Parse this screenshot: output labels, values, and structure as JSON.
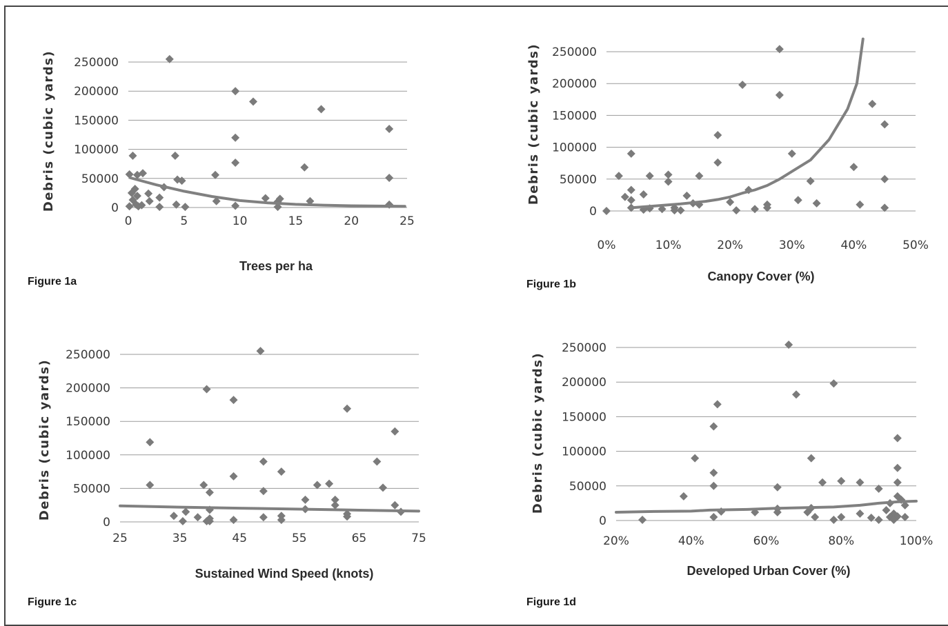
{
  "captions": {
    "a": "Figure 1a",
    "b": "Figure 1b",
    "c": "Figure 1c",
    "d": "Figure 1d"
  },
  "colors": {
    "marker": "#7b7b7b",
    "trend": "#808080",
    "grid": "#9a9a9a",
    "frame": "#444444"
  },
  "chart_data": [
    {
      "id": "a",
      "type": "scatter",
      "title": "",
      "xlabel": "Trees per ha",
      "ylabel": "Debris (cubic yards)",
      "xlim": [
        0,
        25
      ],
      "ylim": [
        0,
        250000
      ],
      "x_ticks": [
        0,
        5,
        10,
        15,
        20,
        25
      ],
      "x_tick_labels": [
        "0",
        "5",
        "10",
        "15",
        "20",
        "25"
      ],
      "y_ticks": [
        0,
        50000,
        100000,
        150000,
        200000,
        250000
      ],
      "y_tick_labels": [
        "0",
        "50000",
        "100000",
        "150000",
        "200000",
        "250000"
      ],
      "grid": true,
      "marker": "diamond",
      "points": [
        [
          3.7,
          255000
        ],
        [
          9.6,
          200000
        ],
        [
          11.2,
          182000
        ],
        [
          17.3,
          169000
        ],
        [
          23.4,
          135000
        ],
        [
          9.6,
          120000
        ],
        [
          0.4,
          89000
        ],
        [
          4.2,
          89000
        ],
        [
          9.6,
          77000
        ],
        [
          15.8,
          69000
        ],
        [
          1.3,
          59000
        ],
        [
          0.1,
          57000
        ],
        [
          0.8,
          56000
        ],
        [
          7.8,
          56000
        ],
        [
          23.4,
          51000
        ],
        [
          4.4,
          48000
        ],
        [
          4.8,
          46000
        ],
        [
          3.2,
          35000
        ],
        [
          0.6,
          32000
        ],
        [
          0.3,
          25000
        ],
        [
          1.8,
          24000
        ],
        [
          0.8,
          20000
        ],
        [
          2.8,
          17000
        ],
        [
          12.3,
          16000
        ],
        [
          13.6,
          15000
        ],
        [
          0.4,
          13000
        ],
        [
          1.9,
          11000
        ],
        [
          7.9,
          11000
        ],
        [
          16.3,
          11000
        ],
        [
          13.4,
          10000
        ],
        [
          0.7,
          5000
        ],
        [
          4.3,
          5000
        ],
        [
          1.2,
          4000
        ],
        [
          23.4,
          5000
        ],
        [
          9.6,
          3000
        ],
        [
          0.1,
          2000
        ],
        [
          0.9,
          2000
        ],
        [
          2.8,
          1000
        ],
        [
          5.1,
          1000
        ],
        [
          13.4,
          1000
        ]
      ],
      "trendline": {
        "x": [
          0.2,
          2.5,
          5,
          7.5,
          10,
          12.5,
          15,
          17.5,
          20,
          22.5,
          24.8
        ],
        "y": [
          51000,
          39000,
          28000,
          19000,
          12000,
          8000,
          5500,
          4000,
          3000,
          2500,
          2000
        ]
      }
    },
    {
      "id": "b",
      "type": "scatter",
      "title": "",
      "xlabel": "Canopy Cover (%)",
      "ylabel": "Debris (cubic yards)",
      "xlim": [
        0,
        50
      ],
      "ylim": [
        0,
        250000
      ],
      "x_ticks": [
        0,
        10,
        20,
        30,
        40,
        50
      ],
      "x_tick_labels": [
        "0%",
        "10%",
        "20%",
        "30%",
        "40%",
        "50%"
      ],
      "y_ticks": [
        0,
        50000,
        100000,
        150000,
        200000,
        250000
      ],
      "y_tick_labels": [
        "0",
        "50000",
        "100000",
        "150000",
        "200000",
        "250000"
      ],
      "grid": true,
      "marker": "diamond",
      "points": [
        [
          28,
          254000
        ],
        [
          22,
          198000
        ],
        [
          28,
          182000
        ],
        [
          43,
          168000
        ],
        [
          45,
          136000
        ],
        [
          18,
          119000
        ],
        [
          4,
          90000
        ],
        [
          30,
          90000
        ],
        [
          18,
          76000
        ],
        [
          40,
          69000
        ],
        [
          2,
          55000
        ],
        [
          7,
          55000
        ],
        [
          10,
          57000
        ],
        [
          15,
          55000
        ],
        [
          45,
          50000
        ],
        [
          10,
          46000
        ],
        [
          33,
          47000
        ],
        [
          4,
          33000
        ],
        [
          23,
          33000
        ],
        [
          6,
          26000
        ],
        [
          3,
          22000
        ],
        [
          13,
          24000
        ],
        [
          4,
          17000
        ],
        [
          31,
          17000
        ],
        [
          20,
          14000
        ],
        [
          34,
          12000
        ],
        [
          14,
          12000
        ],
        [
          15,
          10000
        ],
        [
          41,
          10000
        ],
        [
          26,
          10000
        ],
        [
          26,
          5000
        ],
        [
          45,
          5000
        ],
        [
          4,
          5000
        ],
        [
          11,
          5000
        ],
        [
          7,
          4000
        ],
        [
          9,
          3000
        ],
        [
          24,
          3000
        ],
        [
          6,
          2000
        ],
        [
          12,
          1000
        ],
        [
          21,
          1000
        ],
        [
          11,
          1000
        ],
        [
          0,
          0
        ]
      ],
      "trendline": {
        "x": [
          4,
          8,
          12,
          16,
          18,
          20,
          22,
          24,
          26,
          28,
          30,
          33,
          36,
          39,
          40.5,
          41.5
        ],
        "y": [
          5000,
          8000,
          11000,
          15000,
          18000,
          22000,
          28000,
          33000,
          40000,
          50000,
          62000,
          80000,
          112000,
          160000,
          200000,
          270000
        ]
      }
    },
    {
      "id": "c",
      "type": "scatter",
      "title": "",
      "xlabel": "Sustained Wind Speed (knots)",
      "ylabel": "Debris (cubic yards)",
      "xlim": [
        25,
        75
      ],
      "ylim": [
        0,
        250000
      ],
      "x_ticks": [
        25,
        35,
        45,
        55,
        65,
        75
      ],
      "x_tick_labels": [
        "25",
        "35",
        "45",
        "55",
        "65",
        "75"
      ],
      "y_ticks": [
        0,
        50000,
        100000,
        150000,
        200000,
        250000
      ],
      "y_tick_labels": [
        "0",
        "50000",
        "100000",
        "150000",
        "200000",
        "250000"
      ],
      "grid": true,
      "marker": "diamond",
      "points": [
        [
          48.5,
          255000
        ],
        [
          39.5,
          198000
        ],
        [
          44,
          182000
        ],
        [
          63,
          169000
        ],
        [
          71,
          135000
        ],
        [
          30,
          119000
        ],
        [
          49,
          90000
        ],
        [
          68,
          90000
        ],
        [
          52,
          75000
        ],
        [
          44,
          68000
        ],
        [
          30,
          55000
        ],
        [
          39,
          55000
        ],
        [
          58,
          55000
        ],
        [
          60,
          57000
        ],
        [
          69,
          51000
        ],
        [
          49,
          46000
        ],
        [
          40,
          44000
        ],
        [
          56,
          33000
        ],
        [
          61,
          33000
        ],
        [
          61,
          25000
        ],
        [
          71,
          25000
        ],
        [
          56,
          19000
        ],
        [
          40,
          18000
        ],
        [
          72,
          15000
        ],
        [
          36,
          15000
        ],
        [
          34,
          9000
        ],
        [
          63,
          12000
        ],
        [
          52,
          9000
        ],
        [
          38,
          7000
        ],
        [
          49,
          7000
        ],
        [
          63,
          8000
        ],
        [
          40,
          5000
        ],
        [
          44,
          3000
        ],
        [
          52,
          3000
        ],
        [
          35.5,
          1000
        ],
        [
          39.5,
          1000
        ],
        [
          40,
          1000
        ]
      ],
      "trendline": {
        "x": [
          25,
          35,
          45,
          55,
          65,
          75
        ],
        "y": [
          24000,
          22000,
          20500,
          19000,
          17500,
          16000
        ]
      }
    },
    {
      "id": "d",
      "type": "scatter",
      "title": "",
      "xlabel": "Developed Urban Cover (%)",
      "ylabel": "Debris (cubic yards)",
      "xlim": [
        20,
        100
      ],
      "ylim": [
        0,
        250000
      ],
      "x_ticks": [
        20,
        40,
        60,
        80,
        100
      ],
      "x_tick_labels": [
        "20%",
        "40%",
        "60%",
        "80%",
        "100%"
      ],
      "y_ticks": [
        0,
        50000,
        100000,
        150000,
        200000,
        250000
      ],
      "y_tick_labels": [
        "0",
        "50000",
        "100000",
        "150000",
        "200000",
        "250000"
      ],
      "grid": true,
      "marker": "diamond",
      "points": [
        [
          66,
          254000
        ],
        [
          78,
          198000
        ],
        [
          68,
          182000
        ],
        [
          47,
          168000
        ],
        [
          46,
          136000
        ],
        [
          95,
          119000
        ],
        [
          41,
          90000
        ],
        [
          72,
          90000
        ],
        [
          95,
          76000
        ],
        [
          46,
          69000
        ],
        [
          75,
          55000
        ],
        [
          80,
          57000
        ],
        [
          85,
          55000
        ],
        [
          95,
          55000
        ],
        [
          46,
          50000
        ],
        [
          63,
          48000
        ],
        [
          90,
          46000
        ],
        [
          38,
          35000
        ],
        [
          95,
          35000
        ],
        [
          96,
          30000
        ],
        [
          93,
          25000
        ],
        [
          97,
          22000
        ],
        [
          72,
          18000
        ],
        [
          63,
          17000
        ],
        [
          92,
          15000
        ],
        [
          48,
          13000
        ],
        [
          57,
          12000
        ],
        [
          63,
          12000
        ],
        [
          71,
          12000
        ],
        [
          85,
          10000
        ],
        [
          94,
          10000
        ],
        [
          46,
          5000
        ],
        [
          73,
          5000
        ],
        [
          80,
          5000
        ],
        [
          88,
          4000
        ],
        [
          93,
          5000
        ],
        [
          95,
          6000
        ],
        [
          97,
          5000
        ],
        [
          27,
          1000
        ],
        [
          78,
          1000
        ],
        [
          90,
          1000
        ],
        [
          94,
          1000
        ]
      ],
      "trendline": {
        "x": [
          20,
          30,
          40,
          45,
          55,
          62,
          70,
          78,
          85,
          90,
          95,
          100
        ],
        "y": [
          12000,
          13000,
          13500,
          15000,
          16000,
          17500,
          18500,
          19500,
          22000,
          25000,
          27000,
          28000
        ]
      }
    }
  ]
}
